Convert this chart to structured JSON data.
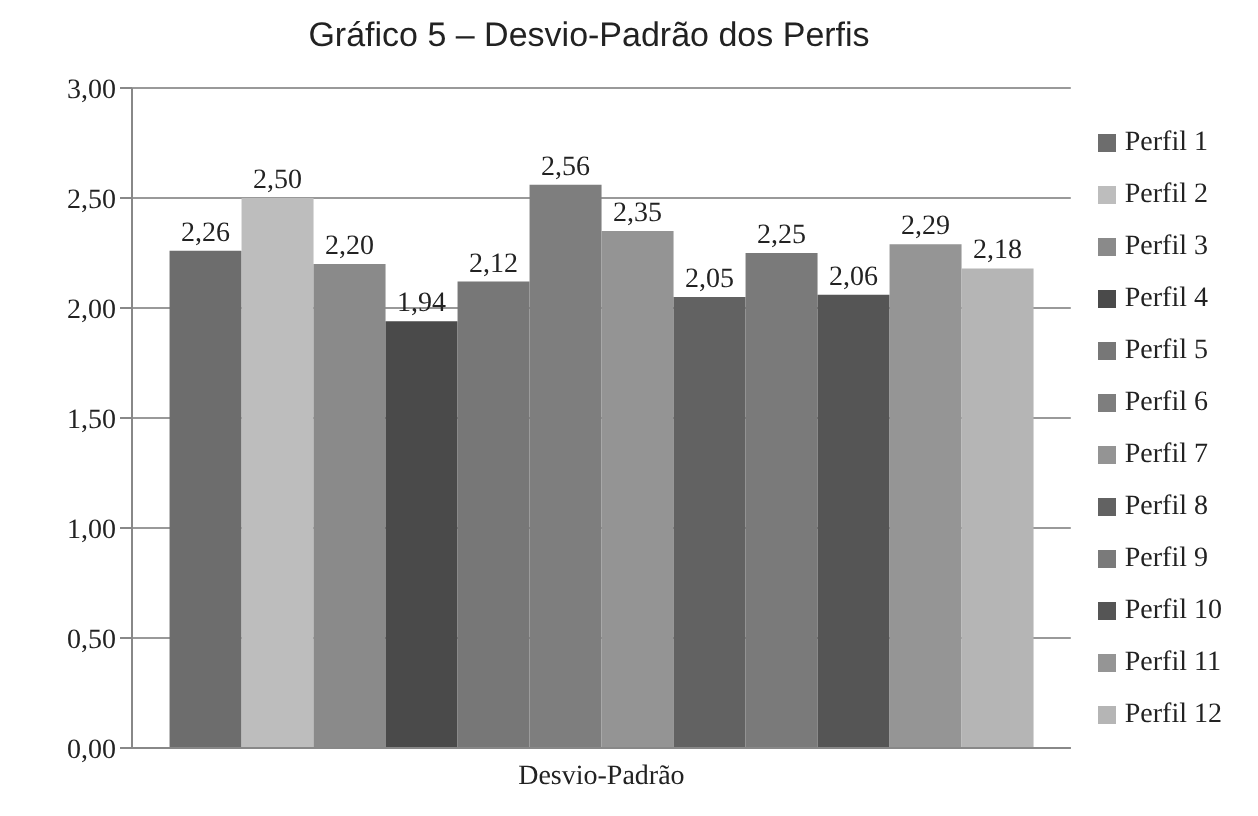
{
  "chart_data": {
    "type": "bar",
    "title": "Gráfico 5 – Desvio-Padrão dos Perfis",
    "categories": [
      "Desvio-Padrão"
    ],
    "series": [
      {
        "name": "Perfil 1",
        "color": "#6d6d6d",
        "values": [
          2.26
        ],
        "value_labels": [
          "2,26"
        ]
      },
      {
        "name": "Perfil 2",
        "color": "#bdbdbd",
        "values": [
          2.5
        ],
        "value_labels": [
          "2,50"
        ]
      },
      {
        "name": "Perfil 3",
        "color": "#8a8a8a",
        "values": [
          2.2
        ],
        "value_labels": [
          "2,20"
        ]
      },
      {
        "name": "Perfil 4",
        "color": "#4a4a4a",
        "values": [
          1.94
        ],
        "value_labels": [
          "1,94"
        ]
      },
      {
        "name": "Perfil 5",
        "color": "#777777",
        "values": [
          2.12
        ],
        "value_labels": [
          "2,12"
        ]
      },
      {
        "name": "Perfil 6",
        "color": "#7e7e7e",
        "values": [
          2.56
        ],
        "value_labels": [
          "2,56"
        ]
      },
      {
        "name": "Perfil 7",
        "color": "#949494",
        "values": [
          2.35
        ],
        "value_labels": [
          "2,35"
        ]
      },
      {
        "name": "Perfil 8",
        "color": "#626262",
        "values": [
          2.05
        ],
        "value_labels": [
          "2,05"
        ]
      },
      {
        "name": "Perfil 9",
        "color": "#7a7a7a",
        "values": [
          2.25
        ],
        "value_labels": [
          "2,25"
        ]
      },
      {
        "name": "Perfil 10",
        "color": "#555555",
        "values": [
          2.06
        ],
        "value_labels": [
          "2,06"
        ]
      },
      {
        "name": "Perfil 11",
        "color": "#959595",
        "values": [
          2.29
        ],
        "value_labels": [
          "2,29"
        ]
      },
      {
        "name": "Perfil 12",
        "color": "#b5b5b5",
        "values": [
          2.18
        ],
        "value_labels": [
          "2,18"
        ]
      }
    ],
    "ylim": [
      0,
      3
    ],
    "yticks": [
      {
        "value": 0,
        "label": "0,00"
      },
      {
        "value": 0.5,
        "label": "0,50"
      },
      {
        "value": 1,
        "label": "1,00"
      },
      {
        "value": 1.5,
        "label": "1,50"
      },
      {
        "value": 2,
        "label": "2,00"
      },
      {
        "value": 2.5,
        "label": "2,50"
      },
      {
        "value": 3,
        "label": "3,00"
      }
    ],
    "grid": "y",
    "legend": "right"
  }
}
